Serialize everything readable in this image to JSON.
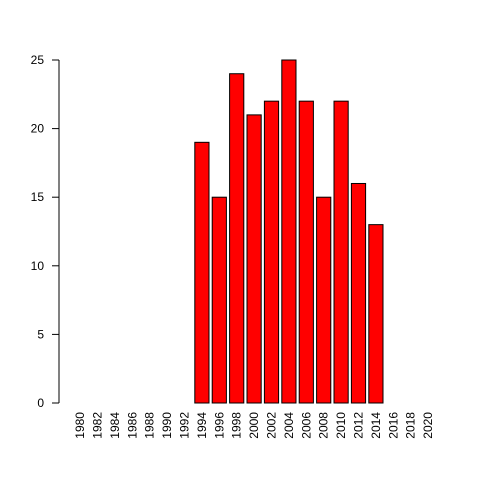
{
  "chart_data": {
    "type": "bar",
    "categories": [
      "1980",
      "1982",
      "1984",
      "1986",
      "1988",
      "1990",
      "1992",
      "1994",
      "1996",
      "1998",
      "2000",
      "2002",
      "2004",
      "2006",
      "2008",
      "2010",
      "2012",
      "2014",
      "2016",
      "2018",
      "2020"
    ],
    "values": [
      0,
      0,
      0,
      0,
      0,
      0,
      0,
      19,
      15,
      24,
      21,
      22,
      25,
      22,
      15,
      22,
      16,
      13,
      0,
      0,
      0
    ],
    "ylim": [
      0,
      25
    ],
    "yticks": [
      0,
      5,
      10,
      15,
      20,
      25
    ],
    "bar_color": "#ff0000",
    "bar_stroke": "#000000",
    "grid": false,
    "xlabel": "",
    "ylabel": "",
    "title": ""
  }
}
